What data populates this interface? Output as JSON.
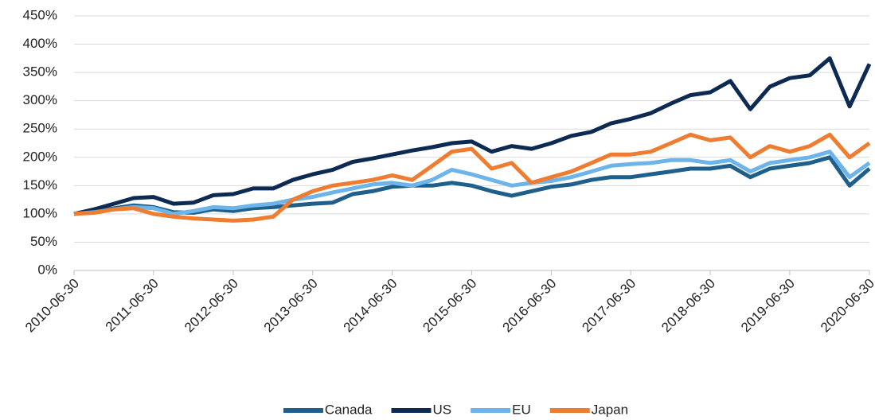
{
  "chart_data": {
    "type": "line",
    "x": [
      "2010-06-30",
      "2010-09-30",
      "2010-12-31",
      "2011-03-31",
      "2011-06-30",
      "2011-09-30",
      "2011-12-31",
      "2012-03-31",
      "2012-06-30",
      "2012-09-30",
      "2012-12-31",
      "2013-03-31",
      "2013-06-30",
      "2013-09-30",
      "2013-12-31",
      "2014-03-31",
      "2014-06-30",
      "2014-09-30",
      "2014-12-31",
      "2015-03-31",
      "2015-06-30",
      "2015-09-30",
      "2015-12-31",
      "2016-03-31",
      "2016-06-30",
      "2016-09-30",
      "2016-12-31",
      "2017-03-31",
      "2017-06-30",
      "2017-09-30",
      "2017-12-31",
      "2018-03-31",
      "2018-06-30",
      "2018-09-30",
      "2018-12-31",
      "2019-03-31",
      "2019-06-30",
      "2019-09-30",
      "2019-12-31",
      "2020-03-31",
      "2020-06-30"
    ],
    "series": [
      {
        "name": "Canada",
        "color": "#1f5f8b",
        "values": [
          100,
          104,
          110,
          115,
          112,
          103,
          102,
          108,
          105,
          110,
          112,
          115,
          118,
          120,
          135,
          140,
          148,
          150,
          150,
          155,
          150,
          140,
          132,
          140,
          148,
          152,
          160,
          165,
          165,
          170,
          175,
          180,
          180,
          185,
          165,
          180,
          185,
          190,
          200,
          150,
          180
        ]
      },
      {
        "name": "US",
        "color": "#0d2a52",
        "values": [
          100,
          108,
          118,
          128,
          130,
          118,
          120,
          133,
          135,
          145,
          145,
          160,
          170,
          178,
          192,
          198,
          205,
          212,
          218,
          225,
          228,
          210,
          220,
          215,
          225,
          238,
          245,
          260,
          268,
          278,
          295,
          310,
          315,
          335,
          285,
          325,
          340,
          345,
          375,
          290,
          365
        ]
      },
      {
        "name": "EU",
        "color": "#6cb4ea",
        "values": [
          100,
          103,
          108,
          112,
          110,
          100,
          105,
          112,
          110,
          115,
          118,
          125,
          130,
          138,
          145,
          152,
          155,
          150,
          160,
          178,
          170,
          160,
          150,
          155,
          158,
          165,
          175,
          185,
          188,
          190,
          195,
          195,
          190,
          195,
          175,
          190,
          195,
          200,
          210,
          165,
          190
        ]
      },
      {
        "name": "Japan",
        "color": "#ee7d31",
        "values": [
          100,
          102,
          108,
          110,
          100,
          95,
          92,
          90,
          88,
          90,
          95,
          125,
          140,
          150,
          155,
          160,
          168,
          160,
          185,
          210,
          215,
          180,
          190,
          155,
          165,
          175,
          190,
          205,
          205,
          210,
          225,
          240,
          230,
          235,
          200,
          220,
          210,
          220,
          240,
          200,
          225
        ]
      }
    ],
    "xlim": [
      "2010-06-30",
      "2020-06-30"
    ],
    "xticks": [
      "2010-06-30",
      "2011-06-30",
      "2012-06-30",
      "2013-06-30",
      "2014-06-30",
      "2015-06-30",
      "2016-06-30",
      "2017-06-30",
      "2018-06-30",
      "2019-06-30",
      "2020-06-30"
    ],
    "ylim": [
      0,
      450
    ],
    "yticks": [
      {
        "value": 0,
        "label": "0%"
      },
      {
        "value": 50,
        "label": "50%"
      },
      {
        "value": 100,
        "label": "100%"
      },
      {
        "value": 150,
        "label": "150%"
      },
      {
        "value": 200,
        "label": "200%"
      },
      {
        "value": 250,
        "label": "250%"
      },
      {
        "value": 300,
        "label": "300%"
      },
      {
        "value": 350,
        "label": "350%"
      },
      {
        "value": 400,
        "label": "400%"
      },
      {
        "value": 450,
        "label": "450%"
      }
    ],
    "grid": true,
    "legend": "bottom"
  }
}
